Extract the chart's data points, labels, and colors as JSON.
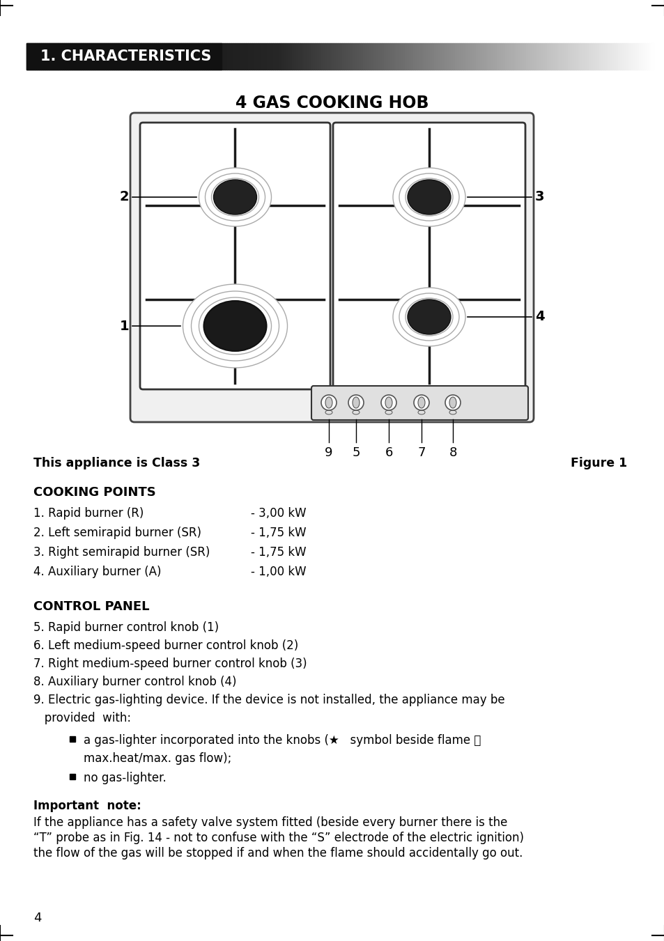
{
  "page_num": "4",
  "section_title": "1. CHARACTERISTICS",
  "diagram_title": "4 GAS COOKING HOB",
  "figure_label": "Figure 1",
  "class_label": "This appliance is Class 3",
  "knob_labels": [
    "9",
    "5",
    "6",
    "7",
    "8"
  ],
  "cooking_points_title": "COOKING POINTS",
  "cooking_points": [
    [
      "1. Rapid burner (R)",
      "- 3,00 kW"
    ],
    [
      "2. Left semirapid burner (SR)",
      "- 1,75 kW"
    ],
    [
      "3. Right semirapid burner (SR)",
      "- 1,75 kW"
    ],
    [
      "4. Auxiliary burner (A)",
      "- 1,00 kW"
    ]
  ],
  "control_panel_title": "CONTROL PANEL",
  "control_panel_items": [
    "5. Rapid burner control knob (1)",
    "6. Left medium-speed burner control knob (2)",
    "7. Right medium-speed burner control knob (3)",
    "8. Auxiliary burner control knob (4)",
    "9. Electric gas-lighting device. If the device is not installed, the appliance may be",
    "   provided  with:"
  ],
  "bullet1_line1": "a gas-lighter incorporated into the knobs (★   symbol beside flame 🔥",
  "bullet1_line2": "max.heat/max. gas flow);",
  "bullet2": "no gas-lighter.",
  "important_title": "Important  note:",
  "important_lines": [
    "If the appliance has a safety valve system fitted (beside every burner there is the",
    "“T” probe as in Fig. 14 - not to confuse with the “S” electrode of the electric ignition)",
    "the flow of the gas will be stopped if and when the flame should accidentally go out."
  ],
  "bg_color": "#ffffff"
}
